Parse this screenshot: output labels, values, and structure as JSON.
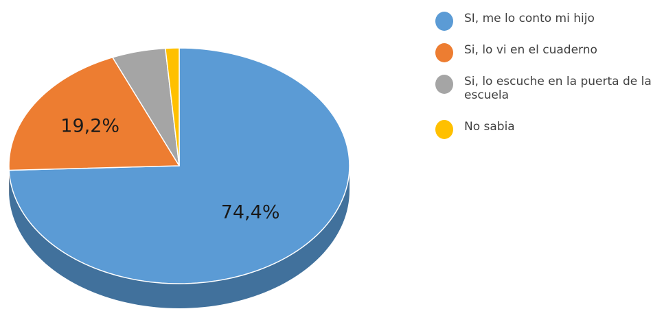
{
  "chart_data": {
    "type": "pie",
    "style": "3d",
    "legend_position": "right",
    "slices": [
      {
        "label": "SI, me lo conto mi hijo",
        "value": 74.4,
        "data_label": "74,4%",
        "color": "#5B9BD5",
        "side_color": "#41719C"
      },
      {
        "label": "Si, lo vi en el cuaderno",
        "value": 19.2,
        "data_label": "19,2%",
        "color": "#ED7D31",
        "side_color": "#AE5A21"
      },
      {
        "label": "Si, lo escuche en la puerta de la escuela",
        "value": 5.1,
        "data_label": "",
        "color": "#A5A5A5",
        "side_color": "#787878"
      },
      {
        "label": "No sabia",
        "value": 1.3,
        "data_label": "",
        "color": "#FFC000",
        "side_color": "#BC8C00"
      }
    ]
  }
}
